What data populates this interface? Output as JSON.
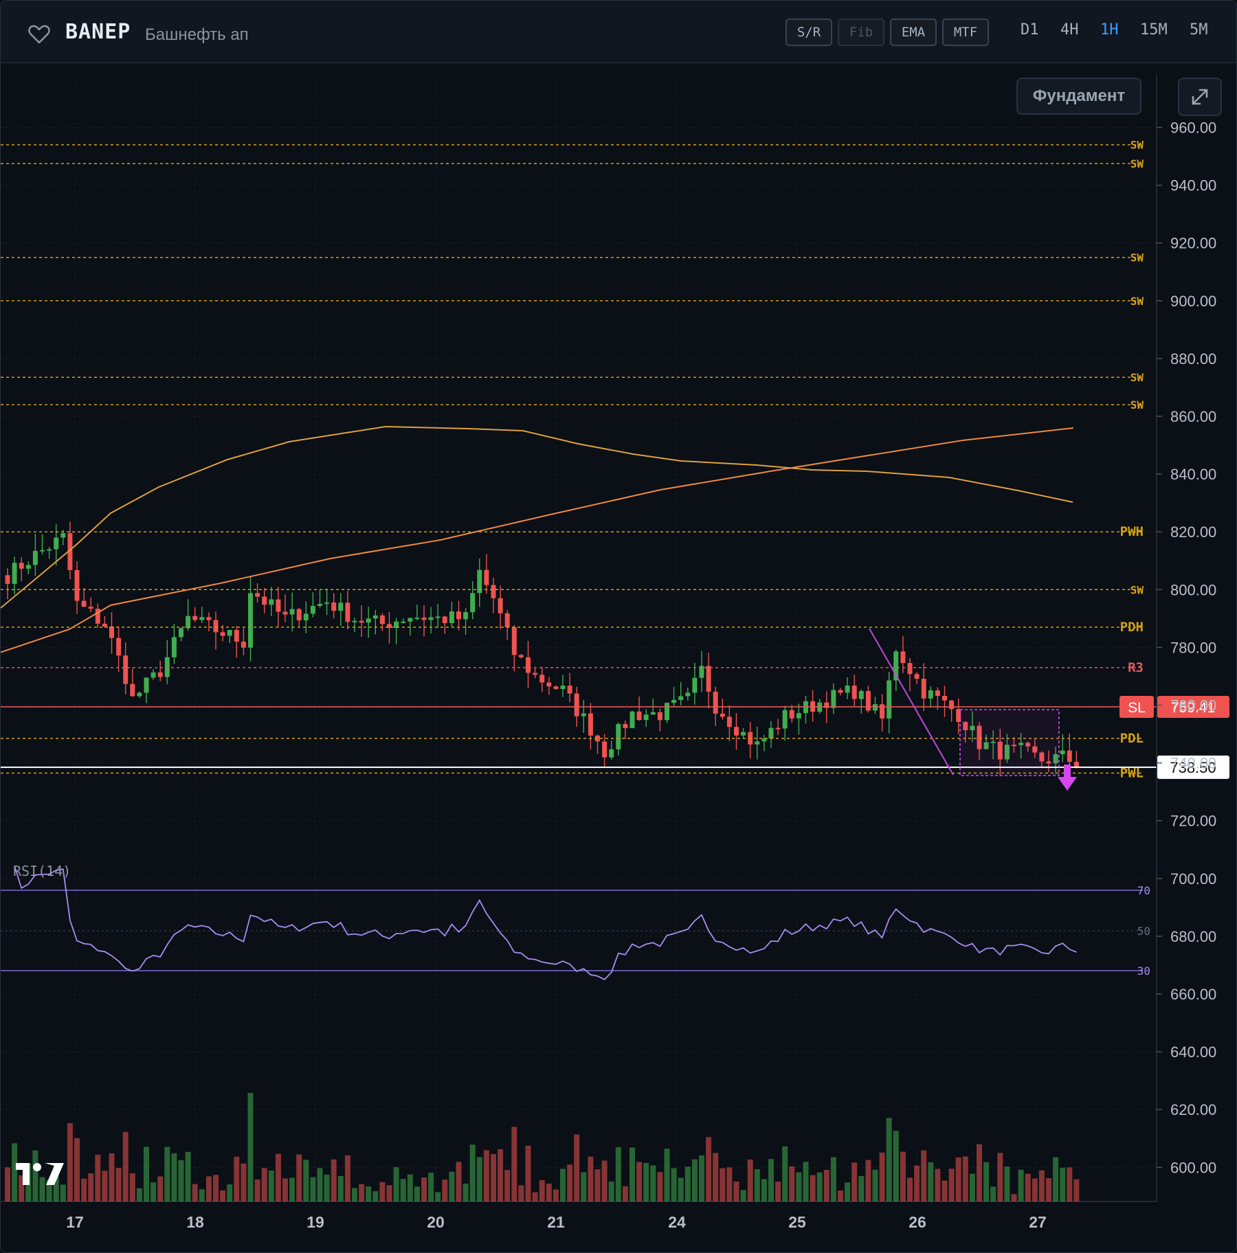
{
  "header": {
    "ticker": "BANEP",
    "company": "Башнефть ап",
    "toggles": [
      "S/R",
      "Fib",
      "EMA",
      "MTF"
    ],
    "timeframes": [
      "D1",
      "4H",
      "1H",
      "15M",
      "5M"
    ],
    "active_timeframe": "1H"
  },
  "buttons": {
    "fundament": "Фундамент"
  },
  "icons": [
    "heart-icon",
    "expand-icon",
    "tradingview-logo"
  ],
  "colors": {
    "up": "#3fae4f",
    "down": "#ef5350",
    "level": "#d4a017",
    "r3": "#e05a5a",
    "ema_fast": "#e0a23a",
    "ema_slow": "#f08a3c",
    "rsi": "#a98cf0",
    "setup": "#d946ef"
  },
  "chart_data": {
    "type": "candlestick",
    "interval": "1H",
    "price_axis": {
      "ylim": [
        587,
        975
      ],
      "ticks": [
        "960.00",
        "940.00",
        "920.00",
        "900.00",
        "880.00",
        "860.00",
        "840.00",
        "820.00",
        "800.00",
        "780.00",
        "760.00",
        "740.00",
        "720.00",
        "700.00",
        "680.00",
        "660.00",
        "640.00",
        "620.00",
        "600.00"
      ]
    },
    "x_labels": [
      "17",
      "18",
      "19",
      "20",
      "21",
      "24",
      "25",
      "26",
      "27"
    ],
    "current_price": "738.50",
    "stop_loss": {
      "label": "SL",
      "value": "759.41"
    },
    "levels": [
      {
        "label": "SW",
        "price": 954
      },
      {
        "label": "SW",
        "price": 947.5
      },
      {
        "label": "SW",
        "price": 915
      },
      {
        "label": "SW",
        "price": 900
      },
      {
        "label": "SW",
        "price": 873.5
      },
      {
        "label": "SW",
        "price": 864
      },
      {
        "label": "PWH",
        "price": 820
      },
      {
        "label": "SW",
        "price": 800
      },
      {
        "label": "PDH",
        "price": 787
      },
      {
        "label": "R3",
        "price": 773,
        "style": "r3"
      },
      {
        "label": "PDL",
        "price": 748.5
      },
      {
        "label": "PWL",
        "price": 736.5
      }
    ],
    "rsi": {
      "label": "RSI(14)",
      "levels": [
        "70",
        "50",
        "30"
      ]
    }
  }
}
